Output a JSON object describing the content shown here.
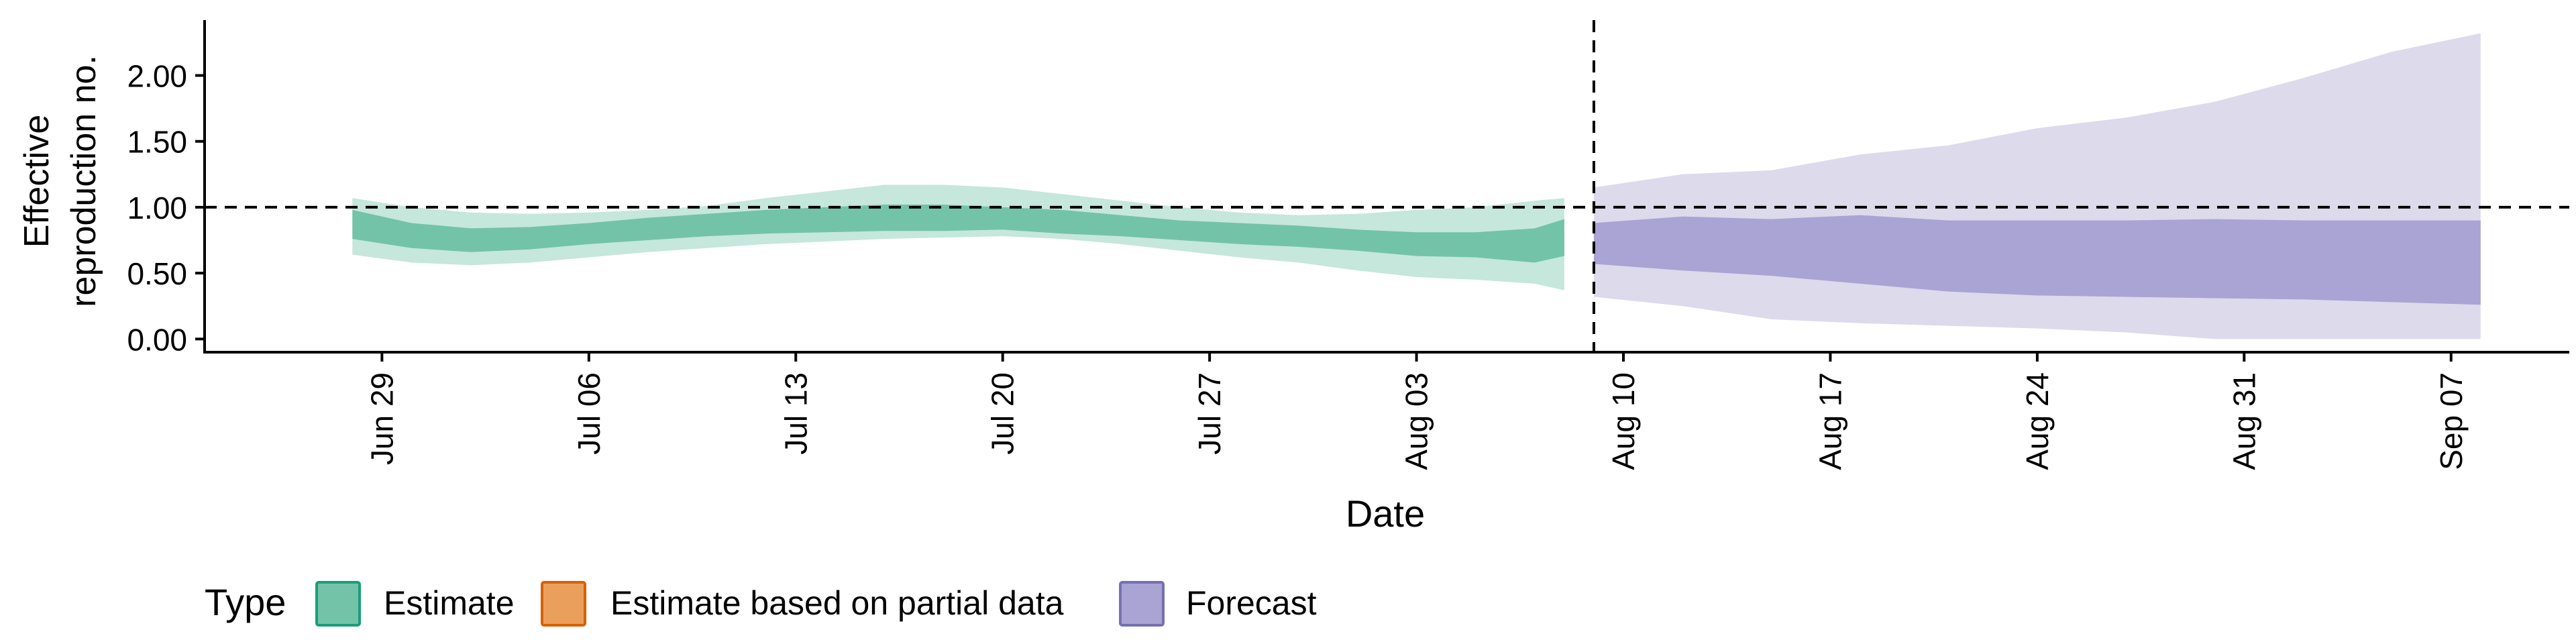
{
  "chart_data": {
    "type": "area",
    "xlabel": "Date",
    "ylabel_lines": [
      "Effective",
      "reproduction no."
    ],
    "x_range": [
      "2020-06-23",
      "2020-09-11"
    ],
    "ylim": [
      -0.1,
      2.42
    ],
    "y_ticks": [
      0,
      0.5,
      1,
      1.5,
      2
    ],
    "y_tick_labels": [
      "0.00",
      "0.50",
      "1.00",
      "1.50",
      "2.00"
    ],
    "x_ticks": [
      "2020-06-29",
      "2020-07-06",
      "2020-07-13",
      "2020-07-20",
      "2020-07-27",
      "2020-08-03",
      "2020-08-10",
      "2020-08-17",
      "2020-08-24",
      "2020-08-31",
      "2020-09-07"
    ],
    "x_tick_labels": [
      "Jun 29",
      "Jul 06",
      "Jul 13",
      "Jul 20",
      "Jul 27",
      "Aug 03",
      "Aug 10",
      "Aug 17",
      "Aug 24",
      "Aug 31",
      "Sep 07"
    ],
    "reference_line_y": 1.0,
    "vertical_line_x": "2020-08-09",
    "grid": false,
    "legend": {
      "position": "bottom-left",
      "title": "Type",
      "items": [
        {
          "label": "Estimate",
          "fill": "#73c3a8",
          "stroke": "#1b9e77"
        },
        {
          "label": "Estimate based on partial data",
          "fill": "#eb9f5c",
          "stroke": "#d95f02"
        },
        {
          "label": "Forecast",
          "fill": "#a9a4d3",
          "stroke": "#7570b3"
        }
      ]
    },
    "series": [
      {
        "name": "Estimate",
        "outer_color": "#c6e7db",
        "inner_color": "#73c3a8",
        "x": [
          "2020-06-28",
          "2020-06-30",
          "2020-07-02",
          "2020-07-04",
          "2020-07-06",
          "2020-07-08",
          "2020-07-10",
          "2020-07-12",
          "2020-07-14",
          "2020-07-16",
          "2020-07-18",
          "2020-07-20",
          "2020-07-22",
          "2020-07-24",
          "2020-07-26",
          "2020-07-28",
          "2020-07-30",
          "2020-08-01",
          "2020-08-03",
          "2020-08-05",
          "2020-08-07",
          "2020-08-08"
        ],
        "outer_upper": [
          1.07,
          1.0,
          0.96,
          0.95,
          0.96,
          0.98,
          1.01,
          1.07,
          1.12,
          1.17,
          1.17,
          1.15,
          1.1,
          1.05,
          1.0,
          0.96,
          0.94,
          0.95,
          0.98,
          1.0,
          1.05,
          1.07
        ],
        "outer_lower": [
          0.64,
          0.58,
          0.56,
          0.58,
          0.62,
          0.66,
          0.69,
          0.72,
          0.74,
          0.76,
          0.77,
          0.78,
          0.76,
          0.72,
          0.67,
          0.62,
          0.58,
          0.52,
          0.47,
          0.45,
          0.42,
          0.37
        ],
        "inner_upper": [
          0.98,
          0.88,
          0.84,
          0.85,
          0.88,
          0.92,
          0.95,
          0.98,
          1.0,
          1.02,
          1.02,
          1.0,
          0.98,
          0.94,
          0.9,
          0.88,
          0.86,
          0.83,
          0.81,
          0.81,
          0.84,
          0.91
        ],
        "inner_lower": [
          0.76,
          0.69,
          0.66,
          0.68,
          0.72,
          0.75,
          0.78,
          0.8,
          0.81,
          0.82,
          0.82,
          0.83,
          0.8,
          0.78,
          0.75,
          0.72,
          0.7,
          0.67,
          0.63,
          0.62,
          0.58,
          0.63
        ]
      },
      {
        "name": "Forecast",
        "outer_color": "#dcdaeb",
        "inner_color": "#a9a4d3",
        "x": [
          "2020-08-09",
          "2020-08-12",
          "2020-08-15",
          "2020-08-18",
          "2020-08-21",
          "2020-08-24",
          "2020-08-27",
          "2020-08-30",
          "2020-09-02",
          "2020-09-05",
          "2020-09-08"
        ],
        "outer_upper": [
          1.15,
          1.25,
          1.28,
          1.4,
          1.47,
          1.6,
          1.68,
          1.8,
          1.98,
          2.18,
          2.32
        ],
        "outer_lower": [
          0.32,
          0.25,
          0.15,
          0.12,
          0.1,
          0.08,
          0.05,
          0.0,
          0.0,
          0.0,
          0.0
        ],
        "inner_upper": [
          0.88,
          0.93,
          0.91,
          0.94,
          0.9,
          0.9,
          0.9,
          0.91,
          0.9,
          0.9,
          0.9
        ],
        "inner_lower": [
          0.57,
          0.52,
          0.48,
          0.42,
          0.36,
          0.33,
          0.32,
          0.31,
          0.3,
          0.28,
          0.26
        ]
      }
    ]
  }
}
